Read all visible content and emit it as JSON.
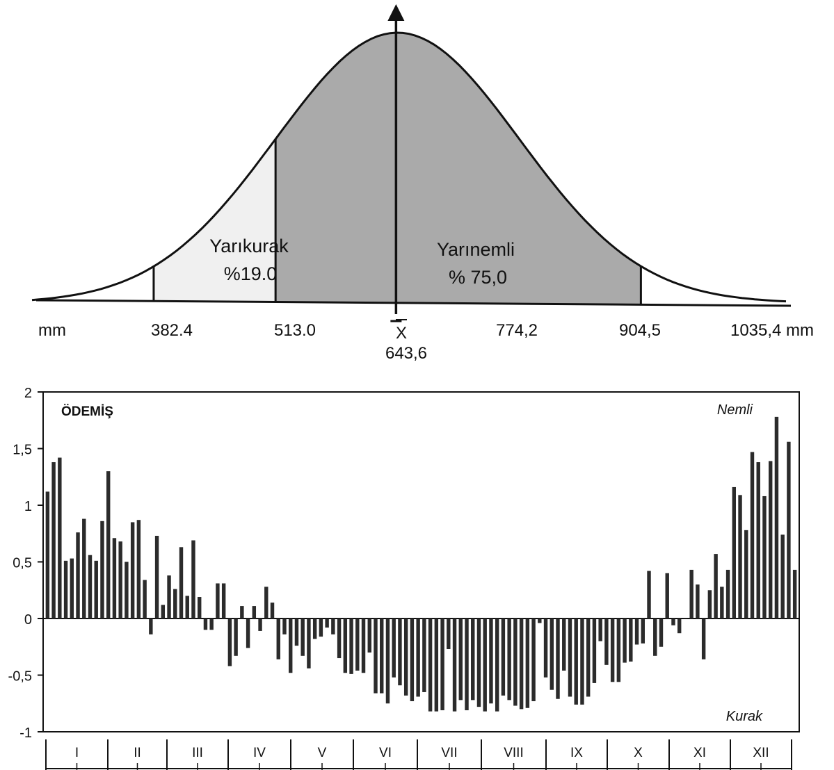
{
  "top_chart": {
    "zones": {
      "semiarid": {
        "label": "Yarıkurak",
        "pct": "%19.0"
      },
      "semihumid": {
        "label": "Yarınemli",
        "pct": "% 75,0"
      }
    },
    "ticks": [
      {
        "label": "mm",
        "value": null
      },
      {
        "label": "382.4",
        "value": 382.4
      },
      {
        "label": "513.0",
        "value": 513.0
      },
      {
        "label": "X",
        "value": 643.6,
        "mean": true
      },
      {
        "label": "774,2",
        "value": 774.2
      },
      {
        "label": "904,5",
        "value": 904.5
      },
      {
        "label": "1035,4 mm",
        "value": 1035.4
      }
    ],
    "mean_value_label": "643,6"
  },
  "chart_data": [
    {
      "type": "area",
      "description_of_content": "normal distribution of annual precipitation",
      "mean": 643.6,
      "sd": 130.6,
      "x_range": [
        252,
        1060
      ],
      "shaded_intervals": [
        {
          "from": 382.4,
          "to": 513.0,
          "label": "Yarıkurak",
          "percent": 19.0,
          "color": "#f0f0f0"
        },
        {
          "from": 513.0,
          "to": 904.5,
          "label": "Yarınemli",
          "percent": 75.0,
          "color": "#aaaaaa"
        }
      ]
    },
    {
      "type": "bar",
      "title": "ÖDEMİŞ",
      "annotations": {
        "top": "Nemli",
        "bottom": "Kurak"
      },
      "ylim": [
        -1,
        2
      ],
      "y_ticks": [
        "2",
        "1,5",
        "1",
        "0,5",
        "0",
        "-0,5",
        "-1"
      ],
      "months": [
        "I",
        "II",
        "III",
        "IV",
        "V",
        "VI",
        "VII",
        "VIII",
        "IX",
        "X",
        "XI",
        "XII"
      ],
      "values": [
        1.12,
        1.38,
        1.42,
        0.51,
        0.53,
        0.76,
        0.88,
        0.56,
        0.51,
        0.86,
        1.3,
        0.71,
        0.68,
        0.5,
        0.85,
        0.87,
        0.34,
        -0.14,
        0.73,
        0.12,
        0.38,
        0.26,
        0.63,
        0.2,
        0.69,
        0.19,
        -0.1,
        -0.1,
        0.31,
        0.31,
        -0.42,
        -0.33,
        0.11,
        -0.26,
        0.11,
        -0.11,
        0.28,
        0.14,
        -0.36,
        -0.14,
        -0.48,
        -0.24,
        -0.33,
        -0.44,
        -0.18,
        -0.16,
        -0.08,
        -0.14,
        -0.35,
        -0.48,
        -0.49,
        -0.46,
        -0.48,
        -0.3,
        -0.66,
        -0.66,
        -0.75,
        -0.52,
        -0.59,
        -0.68,
        -0.73,
        -0.69,
        -0.65,
        -0.82,
        -0.82,
        -0.81,
        -0.27,
        -0.82,
        -0.72,
        -0.81,
        -0.72,
        -0.78,
        -0.82,
        -0.75,
        -0.82,
        -0.68,
        -0.72,
        -0.77,
        -0.8,
        -0.79,
        -0.73,
        -0.04,
        -0.52,
        -0.63,
        -0.71,
        -0.46,
        -0.69,
        -0.76,
        -0.76,
        -0.69,
        -0.57,
        -0.2,
        -0.41,
        -0.56,
        -0.56,
        -0.39,
        -0.38,
        -0.23,
        -0.22,
        0.42,
        -0.33,
        -0.25,
        0.4,
        -0.06,
        -0.13,
        0.0,
        0.43,
        0.3,
        -0.36,
        0.25,
        0.57,
        0.28,
        0.43,
        1.16,
        1.09,
        0.78,
        1.47,
        1.38,
        1.08,
        1.39,
        1.78,
        0.74,
        1.56,
        0.43
      ]
    }
  ]
}
